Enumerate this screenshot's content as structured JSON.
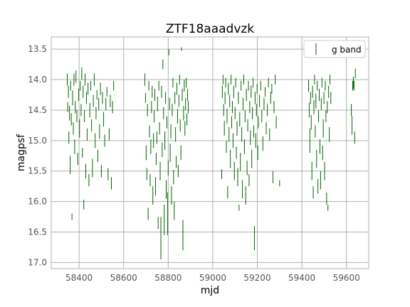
{
  "chart_data": {
    "type": "scatter",
    "title": "ZTF18aaadvzk",
    "xlabel": "mjd",
    "ylabel": "magpsf",
    "xlim": [
      58275,
      59700
    ],
    "ylim": [
      17.1,
      13.3
    ],
    "y_inverted": true,
    "x_ticks": [
      58400,
      58600,
      58800,
      59000,
      59200,
      59400,
      59600
    ],
    "y_ticks": [
      13.5,
      14.0,
      14.5,
      15.0,
      15.5,
      16.0,
      16.5,
      17.0
    ],
    "x_tick_labels": [
      "58400",
      "58600",
      "58800",
      "59000",
      "59200",
      "59400",
      "59600"
    ],
    "y_tick_labels": [
      "13.5",
      "14.0",
      "14.5",
      "15.0",
      "15.5",
      "16.0",
      "16.5",
      "17.0"
    ],
    "grid": true,
    "legend_position": "top-right",
    "marker": "vertical error bar",
    "series": [
      {
        "name": "g band",
        "color": "#006400",
        "points": [
          [
            58347,
            14.0,
            0.1
          ],
          [
            58349,
            14.45,
            0.08
          ],
          [
            58352,
            14.2,
            0.1
          ],
          [
            58354,
            14.95,
            0.1
          ],
          [
            58357,
            14.55,
            0.12
          ],
          [
            58360,
            15.4,
            0.15
          ],
          [
            58362,
            14.1,
            0.08
          ],
          [
            58365,
            14.65,
            0.1
          ],
          [
            58368,
            16.25,
            0.05
          ],
          [
            58371,
            14.3,
            0.12
          ],
          [
            58374,
            14.8,
            0.1
          ],
          [
            58377,
            14.0,
            0.1
          ],
          [
            58380,
            15.1,
            0.12
          ],
          [
            58383,
            14.45,
            0.1
          ],
          [
            58386,
            13.95,
            0.1
          ],
          [
            58390,
            14.6,
            0.1
          ],
          [
            58394,
            15.3,
            0.1
          ],
          [
            58398,
            14.25,
            0.1
          ],
          [
            58402,
            14.8,
            0.15
          ],
          [
            58405,
            14.1,
            0.08
          ],
          [
            58409,
            14.5,
            0.1
          ],
          [
            58412,
            13.9,
            0.1
          ],
          [
            58415,
            15.2,
            0.08
          ],
          [
            58418,
            14.2,
            0.1
          ],
          [
            58421,
            16.05,
            0.08
          ],
          [
            58424,
            14.6,
            0.1
          ],
          [
            58427,
            14.0,
            0.1
          ],
          [
            58430,
            15.5,
            0.12
          ],
          [
            58433,
            14.3,
            0.1
          ],
          [
            58436,
            14.9,
            0.1
          ],
          [
            58440,
            14.15,
            0.1
          ],
          [
            58444,
            15.65,
            0.1
          ],
          [
            58448,
            14.5,
            0.12
          ],
          [
            58452,
            14.1,
            0.08
          ],
          [
            58456,
            14.75,
            0.1
          ],
          [
            58460,
            15.45,
            0.15
          ],
          [
            58464,
            14.35,
            0.1
          ],
          [
            58468,
            14.0,
            0.1
          ],
          [
            58472,
            15.0,
            0.12
          ],
          [
            58476,
            14.55,
            0.1
          ],
          [
            58480,
            14.25,
            0.08
          ],
          [
            58484,
            15.25,
            0.1
          ],
          [
            58488,
            14.4,
            0.1
          ],
          [
            58492,
            14.85,
            0.12
          ],
          [
            58496,
            14.15,
            0.1
          ],
          [
            58500,
            15.5,
            0.1
          ],
          [
            58505,
            14.3,
            0.1
          ],
          [
            58510,
            14.65,
            0.12
          ],
          [
            58515,
            15.0,
            0.1
          ],
          [
            58520,
            14.4,
            0.1
          ],
          [
            58525,
            14.2,
            0.08
          ],
          [
            58530,
            15.55,
            0.1
          ],
          [
            58535,
            14.9,
            0.1
          ],
          [
            58540,
            14.35,
            0.1
          ],
          [
            58545,
            15.7,
            0.1
          ],
          [
            58550,
            14.45,
            0.1
          ],
          [
            58555,
            14.1,
            0.08
          ],
          [
            58695,
            14.0,
            0.1
          ],
          [
            58698,
            14.3,
            0.08
          ],
          [
            58701,
            15.2,
            0.12
          ],
          [
            58704,
            15.55,
            0.1
          ],
          [
            58707,
            14.5,
            0.1
          ],
          [
            58710,
            16.2,
            0.1
          ],
          [
            58713,
            14.1,
            0.08
          ],
          [
            58716,
            14.85,
            0.1
          ],
          [
            58719,
            15.65,
            0.1
          ],
          [
            58722,
            15.1,
            0.12
          ],
          [
            58725,
            14.45,
            0.1
          ],
          [
            58728,
            14.2,
            0.1
          ],
          [
            58731,
            15.9,
            0.15
          ],
          [
            58734,
            15.0,
            0.12
          ],
          [
            58737,
            14.6,
            0.1
          ],
          [
            58740,
            14.25,
            0.1
          ],
          [
            58743,
            15.75,
            0.15
          ],
          [
            58746,
            15.3,
            0.1
          ],
          [
            58749,
            14.95,
            0.1
          ],
          [
            58752,
            14.4,
            0.12
          ],
          [
            58755,
            16.35,
            0.1
          ],
          [
            58758,
            14.1,
            0.08
          ],
          [
            58761,
            14.8,
            0.1
          ],
          [
            58764,
            15.5,
            0.15
          ],
          [
            58767,
            16.6,
            0.35
          ],
          [
            58770,
            14.2,
            0.1
          ],
          [
            58773,
            15.15,
            0.12
          ],
          [
            58776,
            13.75,
            0.08
          ],
          [
            58779,
            14.55,
            0.1
          ],
          [
            58782,
            16.3,
            0.25
          ],
          [
            58785,
            15.0,
            0.15
          ],
          [
            58788,
            14.3,
            0.1
          ],
          [
            58791,
            15.8,
            0.15
          ],
          [
            58794,
            14.7,
            0.1
          ],
          [
            58797,
            16.2,
            0.35
          ],
          [
            58800,
            15.45,
            0.12
          ],
          [
            58803,
            13.55,
            0.05
          ],
          [
            58806,
            14.4,
            0.1
          ],
          [
            58809,
            15.2,
            0.15
          ],
          [
            58812,
            14.85,
            0.12
          ],
          [
            58815,
            15.9,
            0.15
          ],
          [
            58818,
            14.5,
            0.1
          ],
          [
            58821,
            14.05,
            0.08
          ],
          [
            58824,
            15.6,
            0.12
          ],
          [
            58827,
            16.15,
            0.15
          ],
          [
            58830,
            14.3,
            0.1
          ],
          [
            58833,
            14.9,
            0.12
          ],
          [
            58836,
            15.35,
            0.1
          ],
          [
            58839,
            14.15,
            0.1
          ],
          [
            58842,
            14.6,
            0.12
          ],
          [
            58845,
            15.5,
            0.1
          ],
          [
            58848,
            14.35,
            0.1
          ],
          [
            58851,
            14.0,
            0.08
          ],
          [
            58854,
            14.75,
            0.1
          ],
          [
            58857,
            15.2,
            0.12
          ],
          [
            58860,
            13.5,
            0.03
          ],
          [
            58863,
            14.25,
            0.1
          ],
          [
            58866,
            16.55,
            0.25
          ],
          [
            58869,
            14.55,
            0.12
          ],
          [
            58872,
            14.1,
            0.1
          ],
          [
            58875,
            14.8,
            0.12
          ],
          [
            58878,
            14.4,
            0.1
          ],
          [
            58881,
            14.05,
            0.08
          ],
          [
            58884,
            14.65,
            0.1
          ],
          [
            58887,
            14.25,
            0.1
          ],
          [
            58890,
            14.45,
            0.1
          ],
          [
            59040,
            15.55,
            0.08
          ],
          [
            59043,
            14.2,
            0.1
          ],
          [
            59046,
            14.0,
            0.08
          ],
          [
            59049,
            14.5,
            0.1
          ],
          [
            59052,
            14.8,
            0.12
          ],
          [
            59055,
            14.3,
            0.1
          ],
          [
            59058,
            14.05,
            0.08
          ],
          [
            59061,
            15.1,
            0.1
          ],
          [
            59064,
            14.6,
            0.12
          ],
          [
            59067,
            15.85,
            0.1
          ],
          [
            59070,
            14.15,
            0.1
          ],
          [
            59073,
            14.9,
            0.12
          ],
          [
            59076,
            14.35,
            0.1
          ],
          [
            59079,
            15.3,
            0.15
          ],
          [
            59082,
            14.0,
            0.08
          ],
          [
            59085,
            14.7,
            0.1
          ],
          [
            59088,
            14.45,
            0.1
          ],
          [
            59091,
            15.0,
            0.12
          ],
          [
            59094,
            14.2,
            0.1
          ],
          [
            59097,
            15.5,
            0.15
          ],
          [
            59100,
            14.55,
            0.1
          ],
          [
            59103,
            14.05,
            0.08
          ],
          [
            59106,
            15.2,
            0.1
          ],
          [
            59109,
            14.8,
            0.12
          ],
          [
            59112,
            15.6,
            0.15
          ],
          [
            59115,
            14.3,
            0.1
          ],
          [
            59118,
            16.1,
            0.05
          ],
          [
            59121,
            14.65,
            0.12
          ],
          [
            59124,
            15.35,
            0.15
          ],
          [
            59127,
            14.1,
            0.08
          ],
          [
            59130,
            14.9,
            0.12
          ],
          [
            59133,
            15.8,
            0.15
          ],
          [
            59136,
            14.4,
            0.1
          ],
          [
            59139,
            14.0,
            0.08
          ],
          [
            59142,
            15.1,
            0.12
          ],
          [
            59145,
            14.6,
            0.1
          ],
          [
            59148,
            15.9,
            0.15
          ],
          [
            59151,
            14.25,
            0.1
          ],
          [
            59154,
            15.45,
            0.12
          ],
          [
            59157,
            14.75,
            0.1
          ],
          [
            59160,
            14.1,
            0.08
          ],
          [
            59163,
            15.65,
            0.1
          ],
          [
            59166,
            14.45,
            0.1
          ],
          [
            59169,
            14.95,
            0.12
          ],
          [
            59172,
            14.2,
            0.1
          ],
          [
            59175,
            15.3,
            0.15
          ],
          [
            59178,
            14.55,
            0.1
          ],
          [
            59181,
            14.05,
            0.08
          ],
          [
            59184,
            14.85,
            0.1
          ],
          [
            59187,
            16.6,
            0.2
          ],
          [
            59190,
            14.3,
            0.1
          ],
          [
            59193,
            15.0,
            0.12
          ],
          [
            59196,
            14.5,
            0.1
          ],
          [
            59199,
            14.15,
            0.08
          ],
          [
            59202,
            15.2,
            0.12
          ],
          [
            59205,
            14.7,
            0.1
          ],
          [
            59210,
            14.35,
            0.1
          ],
          [
            59215,
            14.1,
            0.08
          ],
          [
            59220,
            14.6,
            0.1
          ],
          [
            59225,
            15.05,
            0.12
          ],
          [
            59230,
            14.4,
            0.1
          ],
          [
            59235,
            14.2,
            0.08
          ],
          [
            59240,
            14.8,
            0.1
          ],
          [
            59245,
            14.5,
            0.1
          ],
          [
            59250,
            14.05,
            0.08
          ],
          [
            59255,
            14.9,
            0.1
          ],
          [
            59260,
            14.3,
            0.1
          ],
          [
            59265,
            14.15,
            0.08
          ],
          [
            59270,
            15.6,
            0.1
          ],
          [
            59275,
            14.45,
            0.1
          ],
          [
            59280,
            14.0,
            0.08
          ],
          [
            59285,
            14.7,
            0.1
          ],
          [
            59300,
            15.7,
            0.05
          ],
          [
            59430,
            14.1,
            0.1
          ],
          [
            59433,
            14.5,
            0.12
          ],
          [
            59436,
            15.0,
            0.2
          ],
          [
            59439,
            14.3,
            0.1
          ],
          [
            59442,
            14.7,
            0.12
          ],
          [
            59445,
            15.5,
            0.15
          ],
          [
            59448,
            14.2,
            0.1
          ],
          [
            59451,
            15.85,
            0.1
          ],
          [
            59454,
            14.45,
            0.12
          ],
          [
            59457,
            14.0,
            0.08
          ],
          [
            59460,
            14.85,
            0.1
          ],
          [
            59463,
            14.35,
            0.12
          ],
          [
            59466,
            15.3,
            0.15
          ],
          [
            59469,
            14.1,
            0.08
          ],
          [
            59472,
            15.75,
            0.12
          ],
          [
            59475,
            14.6,
            0.1
          ],
          [
            59478,
            14.25,
            0.1
          ],
          [
            59481,
            15.1,
            0.12
          ],
          [
            59484,
            15.65,
            0.15
          ],
          [
            59487,
            14.4,
            0.1
          ],
          [
            59490,
            14.05,
            0.08
          ],
          [
            59493,
            15.2,
            0.12
          ],
          [
            59496,
            14.8,
            0.15
          ],
          [
            59499,
            14.3,
            0.1
          ],
          [
            59502,
            15.5,
            0.15
          ],
          [
            59505,
            14.1,
            0.08
          ],
          [
            59508,
            14.6,
            0.1
          ],
          [
            59511,
            15.95,
            0.1
          ],
          [
            59514,
            14.45,
            0.1
          ],
          [
            59517,
            16.1,
            0.05
          ],
          [
            59520,
            14.2,
            0.1
          ],
          [
            59523,
            14.9,
            0.12
          ],
          [
            59526,
            14.0,
            0.08
          ],
          [
            59530,
            14.3,
            0.1
          ],
          [
            59622,
            14.5,
            0.1
          ],
          [
            59625,
            14.75,
            0.15
          ],
          [
            59628,
            14.1,
            0.08
          ],
          [
            59631,
            14.05,
            0.1
          ],
          [
            59634,
            14.1,
            0.08
          ],
          [
            59637,
            14.95,
            0.1
          ],
          [
            59640,
            13.9,
            0.08
          ]
        ]
      }
    ]
  }
}
